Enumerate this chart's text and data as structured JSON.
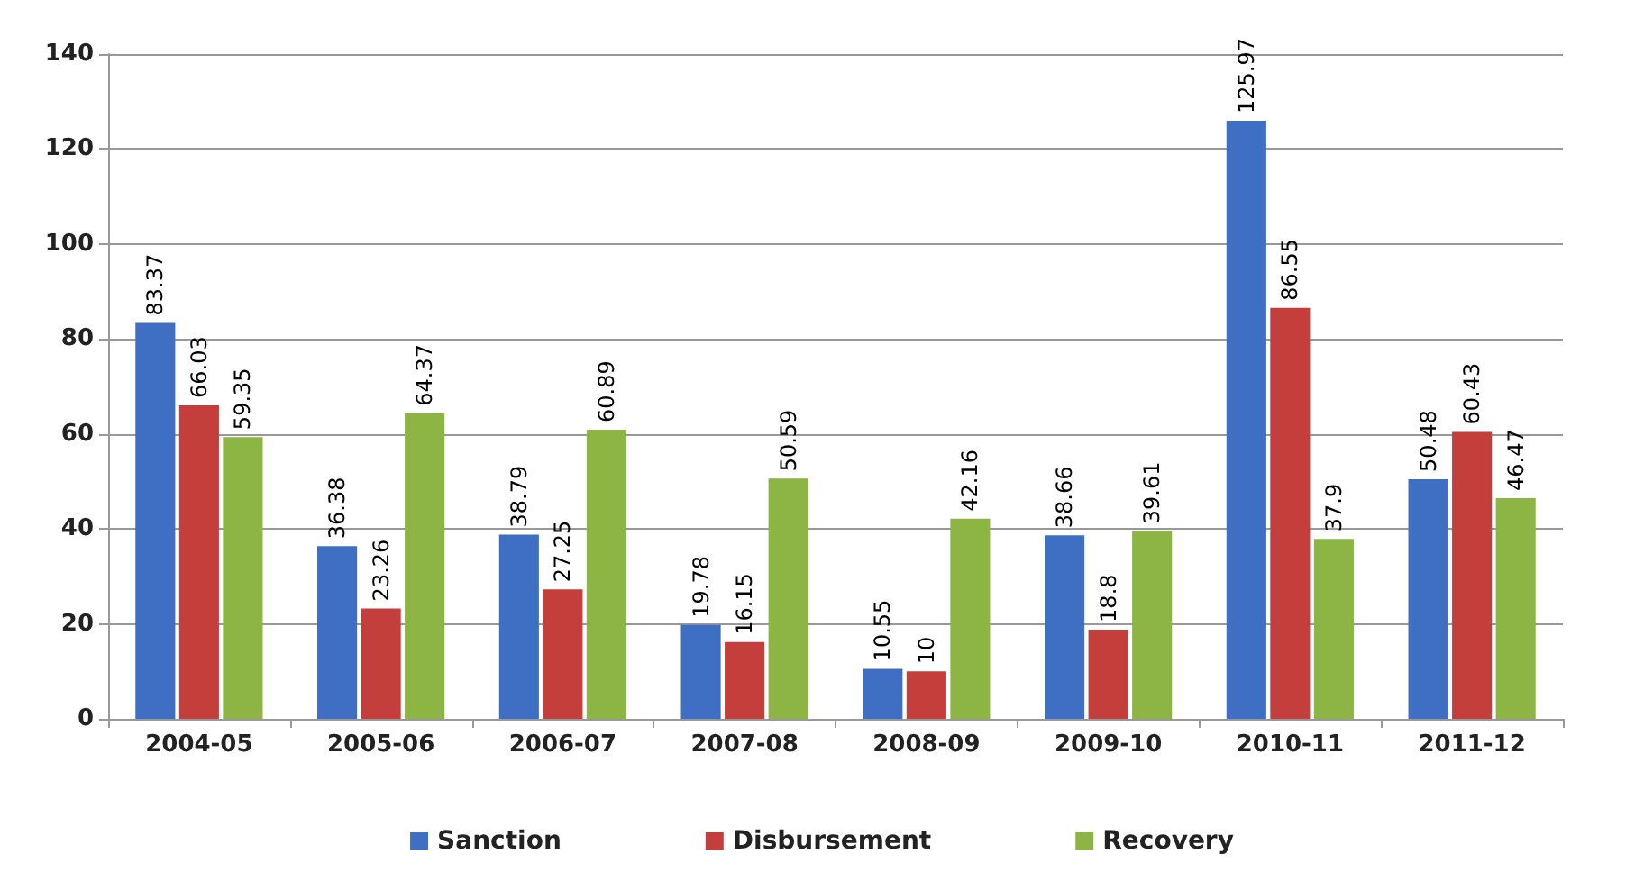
{
  "chart_data": {
    "type": "bar",
    "categories": [
      "2004-05",
      "2005-06",
      "2006-07",
      "2007-08",
      "2008-09",
      "2009-10",
      "2010-11",
      "2011-12"
    ],
    "series": [
      {
        "name": "Sanction",
        "color": "#3f6fc2",
        "values": [
          83.37,
          36.38,
          38.79,
          19.78,
          10.55,
          38.66,
          125.97,
          50.48
        ]
      },
      {
        "name": "Disbursement",
        "color": "#c43f3b",
        "values": [
          66.03,
          23.26,
          27.25,
          16.15,
          10,
          18.8,
          86.55,
          60.43
        ]
      },
      {
        "name": "Recovery",
        "color": "#8db543",
        "values": [
          59.35,
          64.37,
          60.89,
          50.59,
          42.16,
          39.61,
          37.9,
          46.47
        ]
      }
    ],
    "ylim": [
      0,
      140
    ],
    "yticks": [
      0,
      20,
      40,
      60,
      80,
      100,
      120,
      140
    ],
    "grid": "y",
    "legend": "bottom",
    "data_labels": true
  }
}
